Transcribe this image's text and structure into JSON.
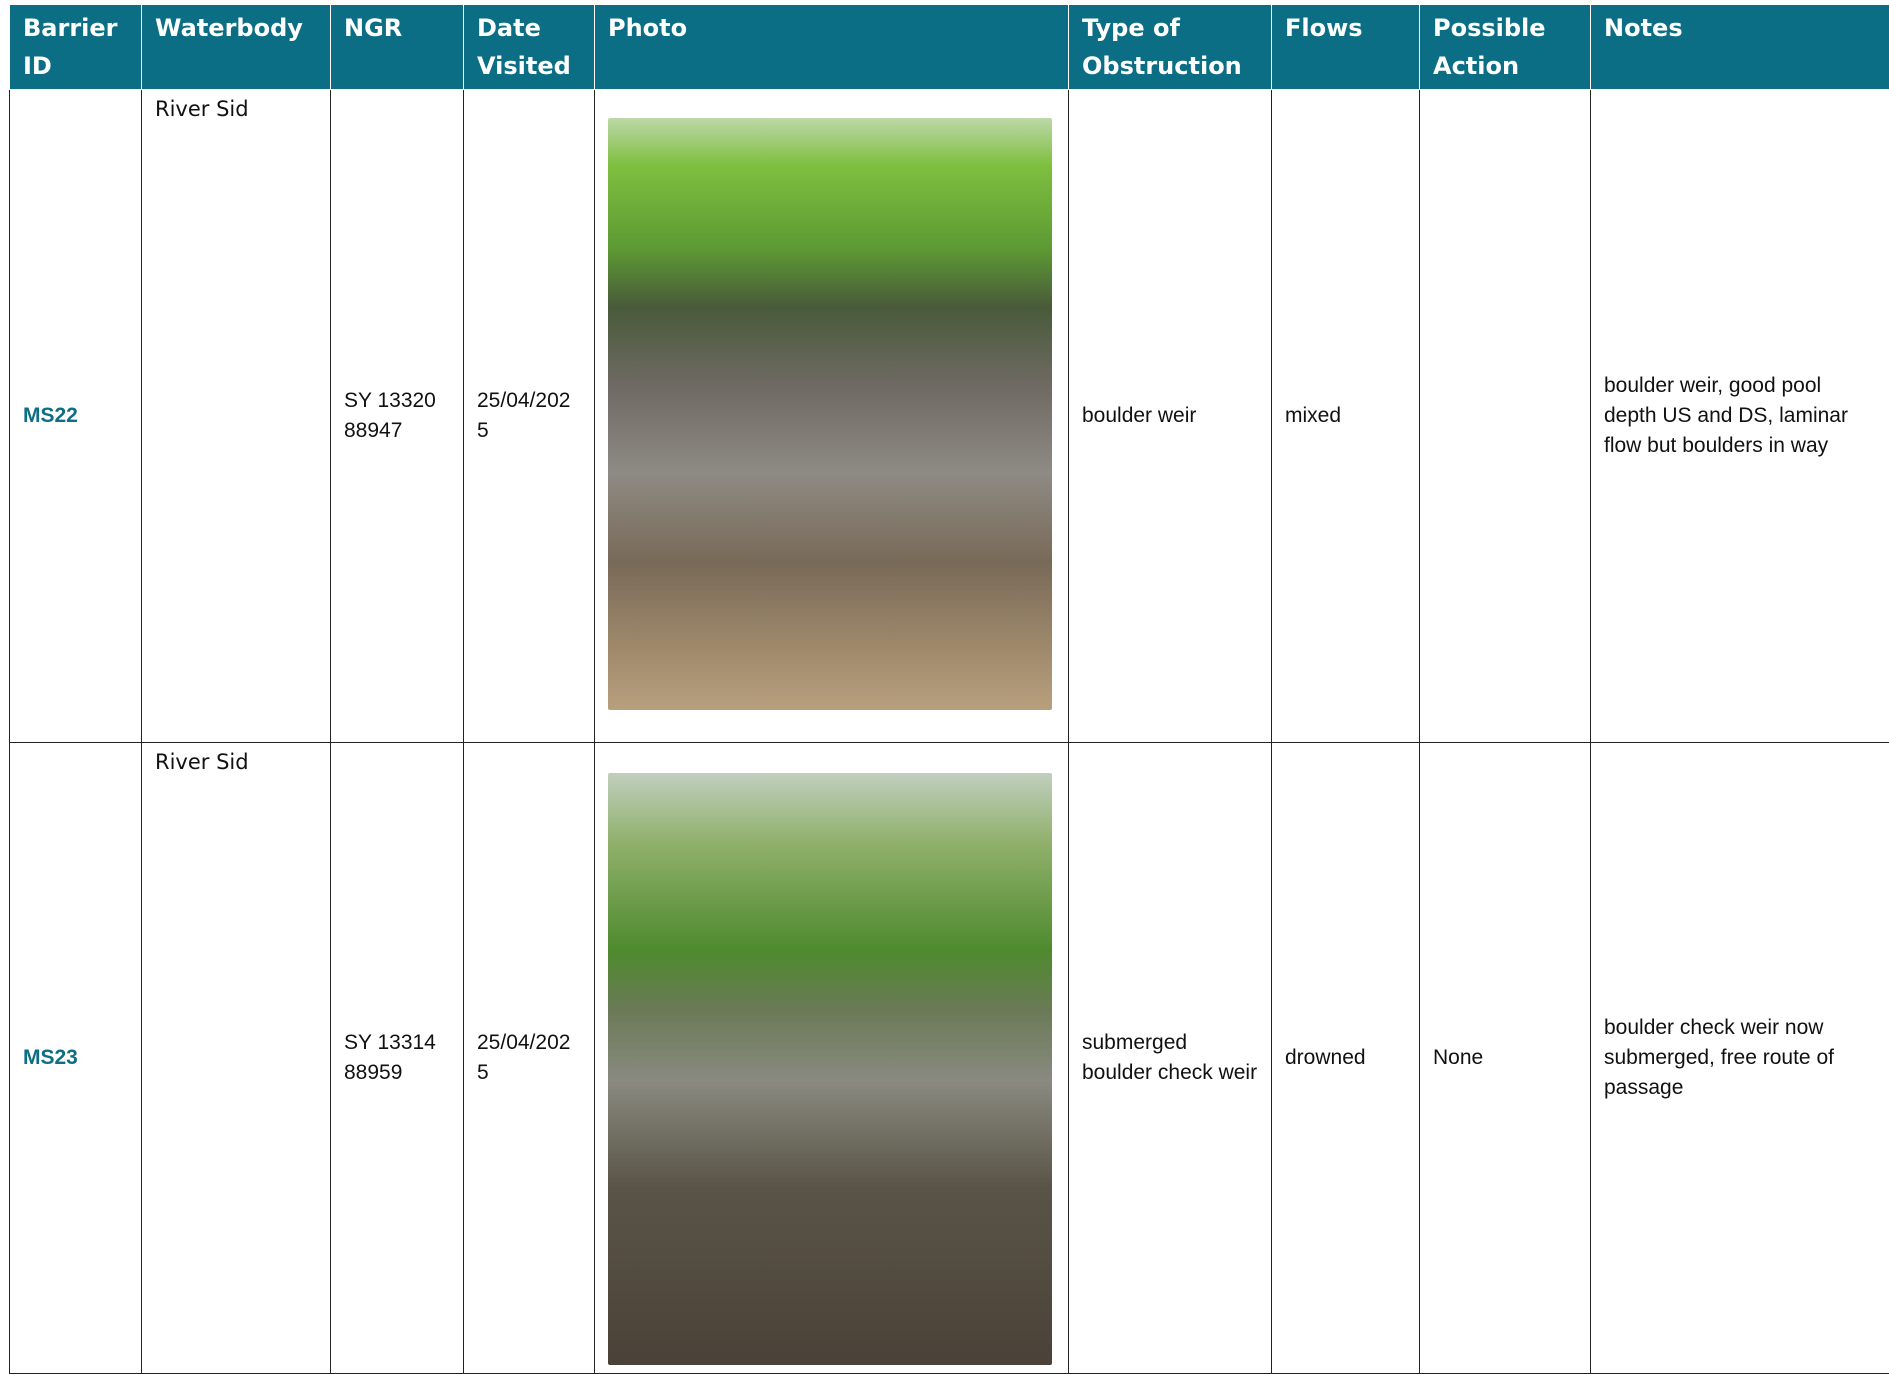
{
  "header": {
    "columns": [
      "Barrier ID",
      "Waterbody",
      "NGR",
      "Date Visited",
      "Photo",
      "Type of Obstruction",
      "Flows",
      "Possible Action",
      "Notes"
    ]
  },
  "rows": [
    {
      "barrier_id": "MS22",
      "waterbody": "River Sid",
      "ngr": "SY 13320 88947",
      "date_visited": "25/04/2025",
      "type": "boulder weir",
      "flows": "mixed",
      "notes": "boulder weir, good pool depth US and DS, laminar flow but boulders in way"
    },
    {
      "barrier_id": "MS23",
      "waterbody": "River Sid",
      "ngr": "SY 13314 88959",
      "date_visited": "25/04/2025",
      "type": "submerged boulder check weir",
      "flows": "drowned",
      "action": "None",
      "notes": "boulder check weir now submerged, free route of passage"
    }
  ]
}
